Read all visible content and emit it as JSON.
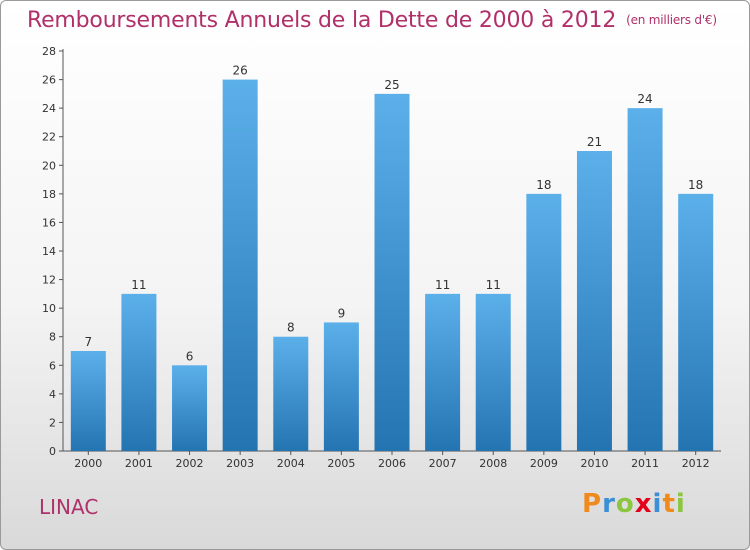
{
  "header": {
    "title": "Remboursements Annuels de la Dette de 2000 à 2012",
    "unit": "(en milliers d'€)"
  },
  "footer": {
    "town": "LINAC",
    "logo_text": "Proxiti"
  },
  "colors": {
    "title": "#b0306a",
    "bar_top": "#5cb0ea",
    "bar_bottom": "#2474b2"
  },
  "chart_data": {
    "type": "bar",
    "title": "Remboursements Annuels de la Dette de 2000 à 2012",
    "subtitle": "(en milliers d'€)",
    "xlabel": "",
    "ylabel": "",
    "categories": [
      "2000",
      "2001",
      "2002",
      "2003",
      "2004",
      "2005",
      "2006",
      "2007",
      "2008",
      "2009",
      "2010",
      "2011",
      "2012"
    ],
    "values": [
      7,
      11,
      6,
      26,
      8,
      9,
      25,
      11,
      11,
      18,
      21,
      24,
      18
    ],
    "ylim": [
      0,
      28
    ],
    "yticks": [
      0,
      2,
      4,
      6,
      8,
      10,
      12,
      14,
      16,
      18,
      20,
      22,
      24,
      26,
      28
    ],
    "grid": false,
    "legend": "none",
    "data_labels": true
  }
}
